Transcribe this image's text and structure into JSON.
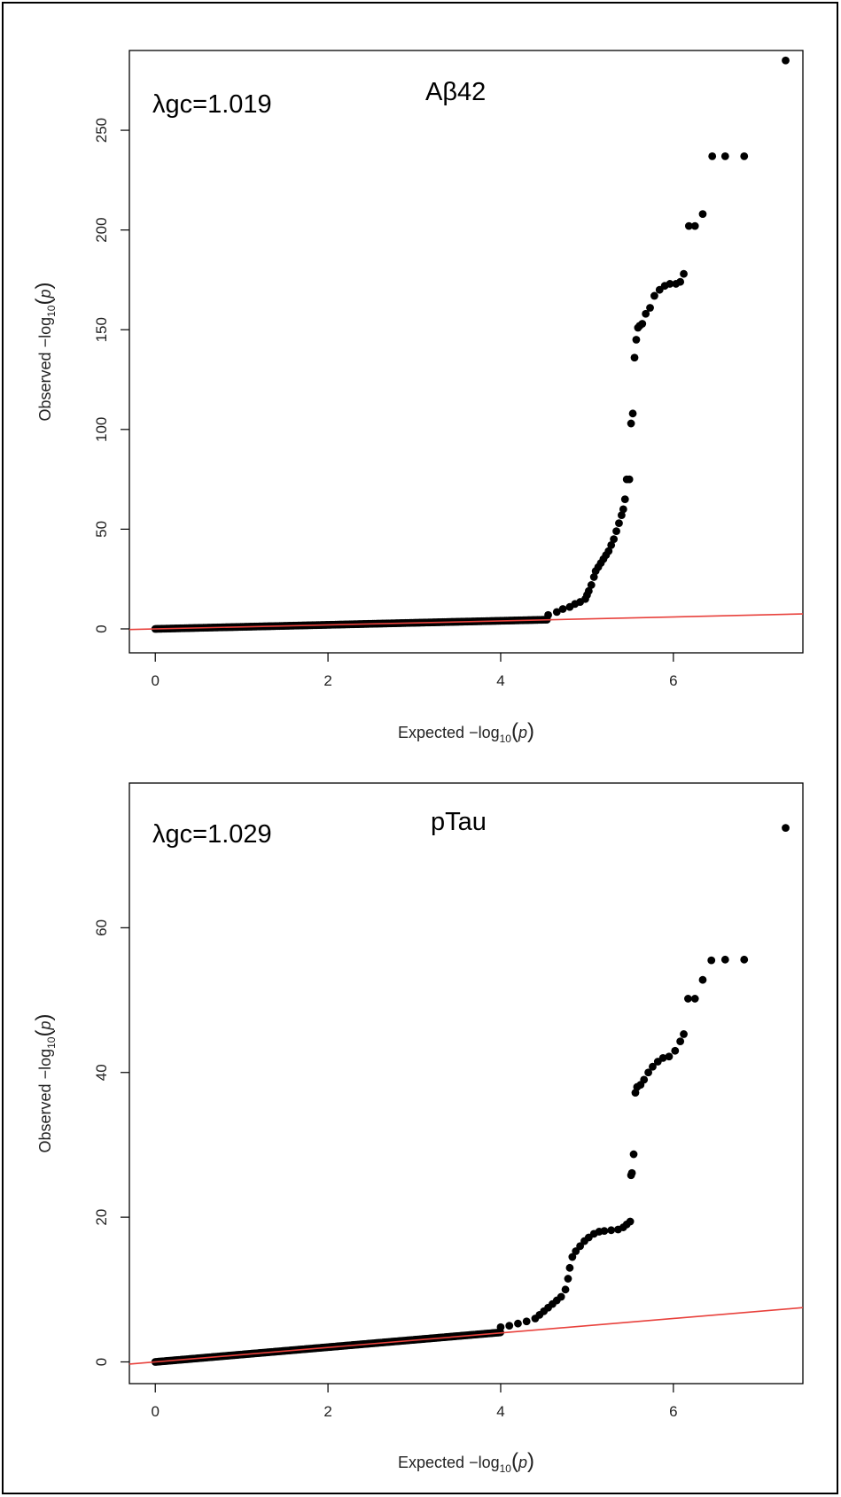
{
  "chart_data": [
    {
      "type": "scatter",
      "title": "Aβ42",
      "annotation": "λgc=1.019",
      "xlabel": "Expected  −log₁₀(p)",
      "ylabel": "Observed  −log₁₀(p)",
      "xlabel_parts": {
        "prefix": "Expected  −log",
        "sub": "10",
        "arg": "p"
      },
      "ylabel_parts": {
        "prefix": "Observed  −log",
        "sub": "10",
        "arg": "p"
      },
      "xlim": [
        -0.3,
        7.5
      ],
      "ylim": [
        -12,
        290
      ],
      "xticks": [
        0,
        2,
        4,
        6
      ],
      "yticks": [
        0,
        50,
        100,
        150,
        200,
        250
      ],
      "grid": false,
      "reference_line": {
        "slope": 1,
        "intercept": 0,
        "color": "#e8413c"
      },
      "point_color": "#000000",
      "points": [
        [
          4.55,
          7
        ],
        [
          4.65,
          8.5
        ],
        [
          4.72,
          10
        ],
        [
          4.8,
          11
        ],
        [
          4.86,
          12.5
        ],
        [
          4.92,
          13.5
        ],
        [
          4.98,
          15
        ],
        [
          5.0,
          17
        ],
        [
          5.02,
          19
        ],
        [
          5.05,
          22
        ],
        [
          5.08,
          26
        ],
        [
          5.1,
          29
        ],
        [
          5.13,
          31
        ],
        [
          5.16,
          33
        ],
        [
          5.19,
          35
        ],
        [
          5.22,
          37
        ],
        [
          5.25,
          39
        ],
        [
          5.28,
          42
        ],
        [
          5.31,
          45
        ],
        [
          5.34,
          49
        ],
        [
          5.37,
          53
        ],
        [
          5.4,
          57
        ],
        [
          5.42,
          60
        ],
        [
          5.44,
          65
        ],
        [
          5.46,
          75
        ],
        [
          5.49,
          75
        ],
        [
          5.51,
          103
        ],
        [
          5.53,
          108
        ],
        [
          5.55,
          136
        ],
        [
          5.57,
          145
        ],
        [
          5.59,
          151
        ],
        [
          5.61,
          152
        ],
        [
          5.64,
          153
        ],
        [
          5.68,
          158
        ],
        [
          5.73,
          161
        ],
        [
          5.78,
          167
        ],
        [
          5.84,
          170
        ],
        [
          5.9,
          172
        ],
        [
          5.96,
          173
        ],
        [
          6.03,
          173
        ],
        [
          6.08,
          174
        ],
        [
          6.12,
          178
        ],
        [
          6.18,
          202
        ],
        [
          6.25,
          202
        ],
        [
          6.34,
          208
        ],
        [
          6.45,
          237
        ],
        [
          6.6,
          237
        ],
        [
          6.82,
          237
        ],
        [
          7.3,
          285
        ]
      ]
    },
    {
      "type": "scatter",
      "title": "pTau",
      "annotation": "λgc=1.029",
      "xlabel": "Expected  −log₁₀(p)",
      "ylabel": "Observed  −log₁₀(p)",
      "xlabel_parts": {
        "prefix": "Expected  −log",
        "sub": "10",
        "arg": "p"
      },
      "ylabel_parts": {
        "prefix": "Observed  −log",
        "sub": "10",
        "arg": "p"
      },
      "xlim": [
        -0.3,
        7.5
      ],
      "ylim": [
        -3,
        80
      ],
      "xticks": [
        0,
        2,
        4,
        6
      ],
      "yticks": [
        0,
        20,
        40,
        60
      ],
      "grid": false,
      "reference_line": {
        "slope": 1,
        "intercept": 0,
        "color": "#e8413c"
      },
      "point_color": "#000000",
      "points": [
        [
          4.0,
          4.8
        ],
        [
          4.1,
          5.0
        ],
        [
          4.2,
          5.3
        ],
        [
          4.3,
          5.6
        ],
        [
          4.4,
          6.0
        ],
        [
          4.45,
          6.5
        ],
        [
          4.5,
          7.0
        ],
        [
          4.55,
          7.5
        ],
        [
          4.6,
          8.0
        ],
        [
          4.65,
          8.5
        ],
        [
          4.7,
          9.0
        ],
        [
          4.75,
          10.0
        ],
        [
          4.78,
          11.5
        ],
        [
          4.8,
          13.0
        ],
        [
          4.83,
          14.5
        ],
        [
          4.87,
          15.3
        ],
        [
          4.92,
          16.0
        ],
        [
          4.97,
          16.7
        ],
        [
          5.02,
          17.2
        ],
        [
          5.08,
          17.7
        ],
        [
          5.14,
          18.0
        ],
        [
          5.2,
          18.1
        ],
        [
          5.28,
          18.2
        ],
        [
          5.36,
          18.3
        ],
        [
          5.42,
          18.6
        ],
        [
          5.46,
          19.0
        ],
        [
          5.5,
          19.4
        ],
        [
          5.51,
          25.8
        ],
        [
          5.52,
          26.1
        ],
        [
          5.54,
          28.7
        ],
        [
          5.56,
          37.2
        ],
        [
          5.58,
          38.0
        ],
        [
          5.62,
          38.3
        ],
        [
          5.66,
          39.0
        ],
        [
          5.71,
          40.0
        ],
        [
          5.76,
          40.8
        ],
        [
          5.82,
          41.5
        ],
        [
          5.88,
          42.0
        ],
        [
          5.95,
          42.2
        ],
        [
          6.02,
          43.0
        ],
        [
          6.08,
          44.3
        ],
        [
          6.12,
          45.3
        ],
        [
          6.17,
          50.2
        ],
        [
          6.25,
          50.2
        ],
        [
          6.34,
          52.8
        ],
        [
          6.44,
          55.5
        ],
        [
          6.6,
          55.6
        ],
        [
          6.82,
          55.6
        ],
        [
          7.3,
          73.8
        ]
      ]
    }
  ]
}
